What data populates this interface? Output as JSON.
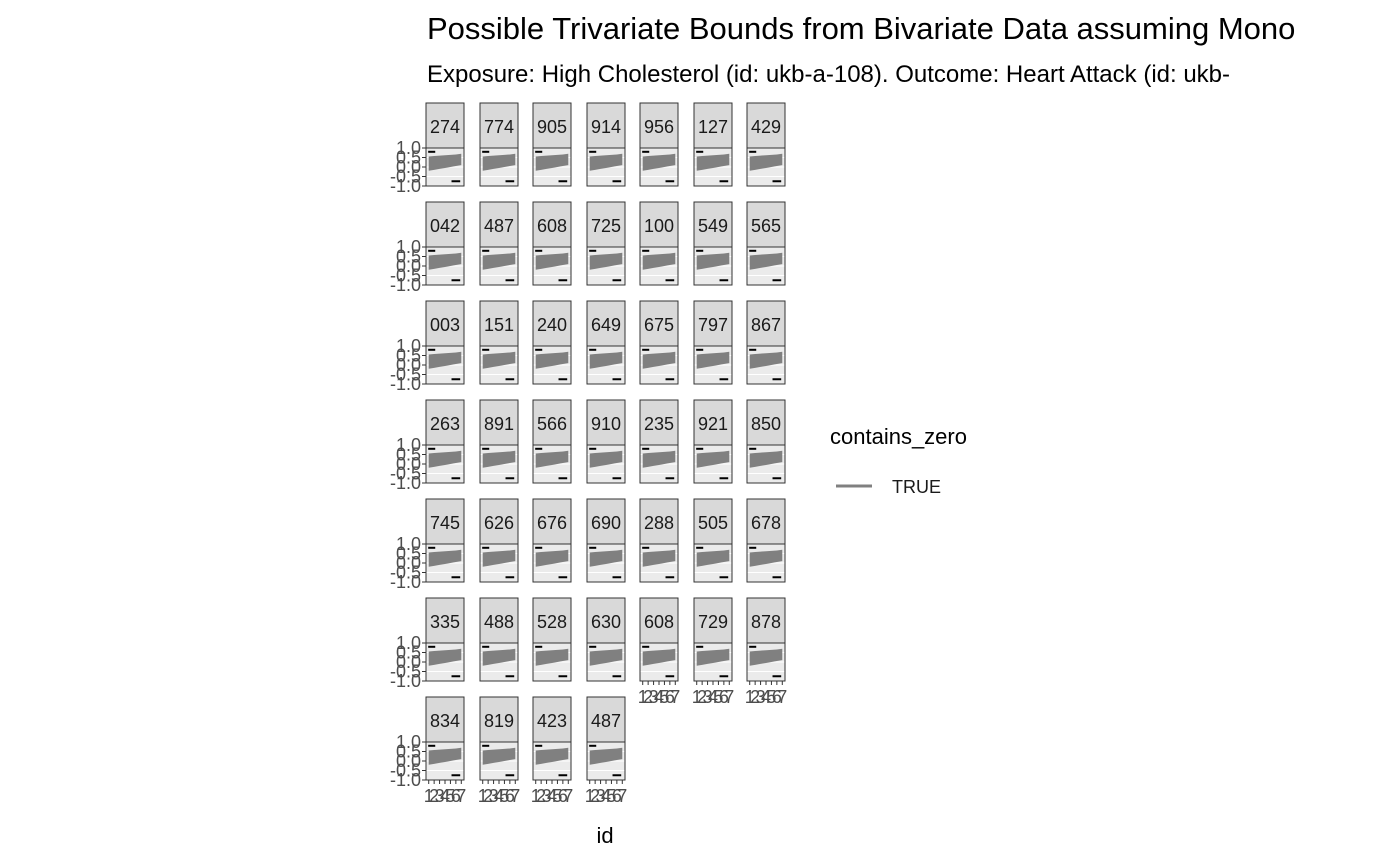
{
  "chart_data": {
    "type": "line",
    "title": "Possible Trivariate Bounds from Bivariate Data assuming Mono",
    "subtitle": "Exposure: High Cholesterol (id: ukb-a-108). Outcome: Heart Attack (id: ukb-",
    "xlabel": "id",
    "ylabel": "",
    "ylim": [
      -1.0,
      1.0
    ],
    "y_tick_labels": [
      "-1.0",
      "-0.5",
      "0.0",
      "0.5",
      "1.0"
    ],
    "y_tick_values": [
      -1.0,
      -0.5,
      0.0,
      0.5,
      1.0
    ],
    "x_tick_labels": [
      "1",
      "2",
      "3",
      "4",
      "5",
      "6",
      "7"
    ],
    "x_tick_values": [
      1,
      2,
      3,
      4,
      5,
      6,
      7
    ],
    "xlim": [
      0.5,
      7.5
    ],
    "grid": true,
    "facet_labels": [
      "274",
      "774",
      "905",
      "914",
      "956",
      "127",
      "429",
      "042",
      "487",
      "608",
      "725",
      "100",
      "549",
      "565",
      "003",
      "151",
      "240",
      "649",
      "675",
      "797",
      "867",
      "263",
      "891",
      "566",
      "910",
      "235",
      "921",
      "850",
      "745",
      "626",
      "676",
      "690",
      "288",
      "505",
      "678",
      "335",
      "488",
      "528",
      "630",
      "608",
      "729",
      "878",
      "834",
      "819",
      "423",
      "487"
    ],
    "series_values": {
      "upper_bound": [
        0.55,
        0.58,
        0.6,
        0.62,
        0.64,
        0.66,
        0.7
      ],
      "lower_bound": [
        -0.2,
        -0.15,
        -0.1,
        -0.05,
        0.0,
        0.05,
        0.1
      ],
      "reference_top": 0.8,
      "reference_bottom": -0.75
    },
    "legend": {
      "title": "contains_zero",
      "entries": [
        {
          "label": "TRUE",
          "color": "#808080"
        }
      ],
      "position": "right"
    },
    "colors": {
      "band": "#808080",
      "strip_fill": "#d9d9d9",
      "panel_fill": "#ebebeb",
      "panel_border": "#333333",
      "grid": "#ffffff",
      "reference": "#000000"
    }
  }
}
